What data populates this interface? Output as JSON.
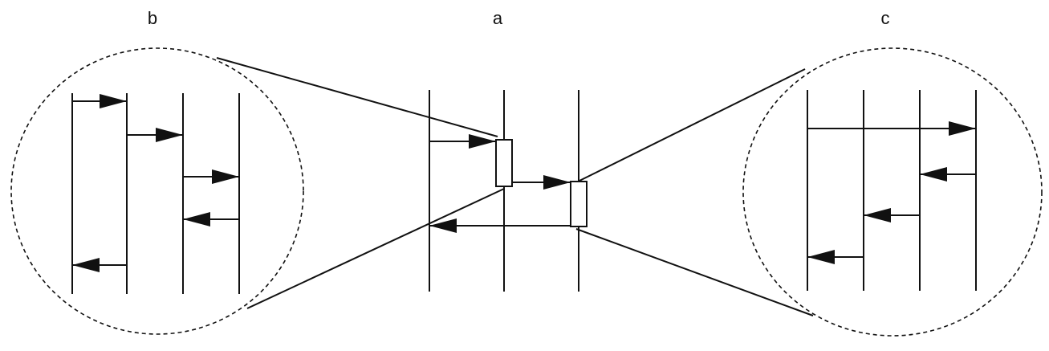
{
  "labels": {
    "left": "b",
    "center": "a",
    "right": "c"
  },
  "colors": {
    "ink": "#111111",
    "background": "#ffffff"
  }
}
